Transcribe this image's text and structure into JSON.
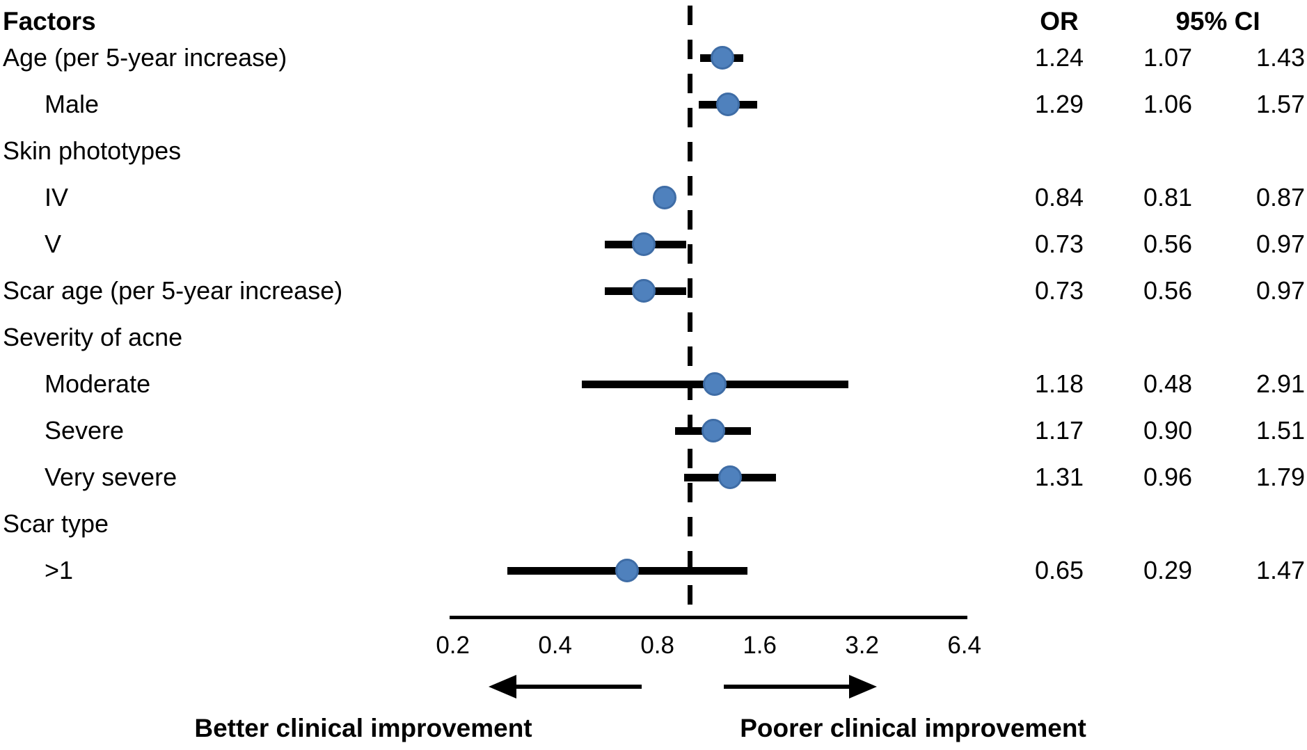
{
  "header": {
    "factors": "Factors",
    "or": "OR",
    "ci": "95% CI"
  },
  "direction_labels": {
    "left": "Better clinical improvement",
    "right": "Poorer clinical improvement"
  },
  "chart_data": {
    "type": "scatter",
    "subtype": "forest-plot",
    "title": "",
    "xlabel": "",
    "ylabel": "",
    "x_axis": {
      "scale": "log2",
      "ticks": [
        0.2,
        0.4,
        0.8,
        1.6,
        3.2,
        6.4
      ],
      "tick_labels": [
        "0.2",
        "0.4",
        "0.8",
        "1.6",
        "3.2",
        "6.4"
      ],
      "range": [
        0.2,
        6.4
      ],
      "reference_line": 1.0
    },
    "columns": [
      "Factors",
      "OR",
      "95% CI low",
      "95% CI high"
    ],
    "rows": [
      {
        "label": "Age (per 5-year increase)",
        "indent": false,
        "or": "1.24",
        "ci_low": "1.07",
        "ci_high": "1.43"
      },
      {
        "label": "Male",
        "indent": true,
        "or": "1.29",
        "ci_low": "1.06",
        "ci_high": "1.57"
      },
      {
        "label": "Skin phototypes",
        "indent": false,
        "or": null,
        "ci_low": null,
        "ci_high": null
      },
      {
        "label": "IV",
        "indent": true,
        "or": "0.84",
        "ci_low": "0.81",
        "ci_high": "0.87"
      },
      {
        "label": "V",
        "indent": true,
        "or": "0.73",
        "ci_low": "0.56",
        "ci_high": "0.97"
      },
      {
        "label": "Scar age (per 5-year increase)",
        "indent": false,
        "or": "0.73",
        "ci_low": "0.56",
        "ci_high": "0.97"
      },
      {
        "label": "Severity of acne",
        "indent": false,
        "or": null,
        "ci_low": null,
        "ci_high": null
      },
      {
        "label": "Moderate",
        "indent": true,
        "or": "1.18",
        "ci_low": "0.48",
        "ci_high": "2.91"
      },
      {
        "label": "Severe",
        "indent": true,
        "or": "1.17",
        "ci_low": "0.90",
        "ci_high": "1.51"
      },
      {
        "label": "Very severe",
        "indent": true,
        "or": "1.31",
        "ci_low": "0.96",
        "ci_high": "1.79"
      },
      {
        "label": "Scar type",
        "indent": false,
        "or": null,
        "ci_low": null,
        "ci_high": null
      },
      {
        "label": ">1",
        "indent": true,
        "or": "0.65",
        "ci_low": "0.29",
        "ci_high": "1.47"
      }
    ],
    "colors": {
      "marker_fill": "#4F81BD",
      "marker_border": "#3F6DA6",
      "line": "#000000",
      "text": "#000000",
      "background": "#FFFFFF"
    },
    "legend": null,
    "grid": false
  }
}
